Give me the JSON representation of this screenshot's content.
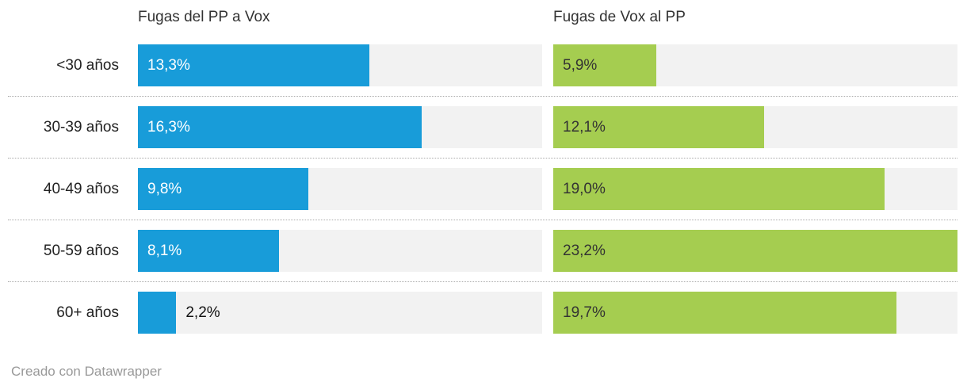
{
  "chart_data": {
    "type": "bar",
    "orientation": "horizontal",
    "categories": [
      "<30 años",
      "30-39 años",
      "40-49 años",
      "50-59 años",
      "60+ años"
    ],
    "series": [
      {
        "name": "Fugas del PP a Vox",
        "color": "#189cd9",
        "label_color": "#ffffff",
        "values": [
          13.3,
          16.3,
          9.8,
          8.1,
          2.2
        ],
        "labels": [
          "13,3%",
          "16,3%",
          "9,8%",
          "8,1%",
          "2,2%"
        ]
      },
      {
        "name": "Fugas de Vox al PP",
        "color": "#a5cd50",
        "label_color": "#333333",
        "values": [
          5.9,
          12.1,
          19.0,
          23.2,
          19.7
        ],
        "labels": [
          "5,9%",
          "12,1%",
          "19,0%",
          "23,2%",
          "19,7%"
        ]
      }
    ],
    "xmax": 23.2,
    "grid": "dotted-row-separators",
    "legend_position": "column-headers",
    "track_color": "#f2f2f2",
    "footer": "Creado con Datawrapper"
  }
}
